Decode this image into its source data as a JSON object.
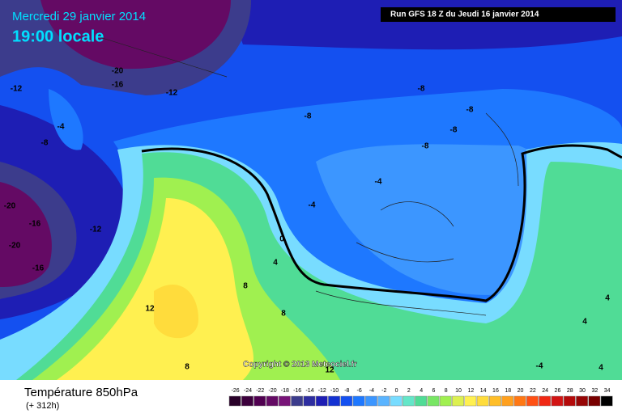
{
  "header": {
    "date": "Mercredi 29 janvier 2014",
    "time": "19:00 locale",
    "run": "Run GFS 18 Z du Jeudi 16 janvier 2014"
  },
  "footer": {
    "title": "Température 850hPa",
    "subtitle": "(+ 312h)",
    "copyright": "Copyright © 2013 Meteociel.fr"
  },
  "contour_labels": [
    -20,
    -16,
    -12,
    -12,
    -4,
    -8,
    -8,
    -8,
    -8,
    -8,
    -8,
    -4,
    -4,
    0,
    4,
    8,
    12,
    8,
    8,
    -20,
    -16,
    -12,
    -20,
    -16,
    4,
    4,
    -4,
    4,
    12
  ],
  "legend": {
    "values": [
      -26,
      -24,
      -22,
      -20,
      -18,
      -16,
      -14,
      -12,
      -10,
      -8,
      -6,
      -4,
      -2,
      0,
      2,
      4,
      6,
      8,
      10,
      12,
      14,
      16,
      18,
      20,
      22,
      24,
      26,
      28,
      30,
      32,
      34
    ],
    "colors": [
      "#280028",
      "#3c003c",
      "#500050",
      "#640a64",
      "#781478",
      "#3c3c8c",
      "#2d2da0",
      "#1e1eb4",
      "#1432d2",
      "#1450f0",
      "#1e78ff",
      "#3c96ff",
      "#5ab4ff",
      "#78dcff",
      "#64e6c8",
      "#50dc96",
      "#78e664",
      "#a0f050",
      "#dcf050",
      "#fff050",
      "#ffdc3c",
      "#ffbe28",
      "#ffa01e",
      "#ff7814",
      "#ff5014",
      "#f02814",
      "#d21414",
      "#b40a0a",
      "#960505",
      "#780000",
      "#000000"
    ]
  }
}
